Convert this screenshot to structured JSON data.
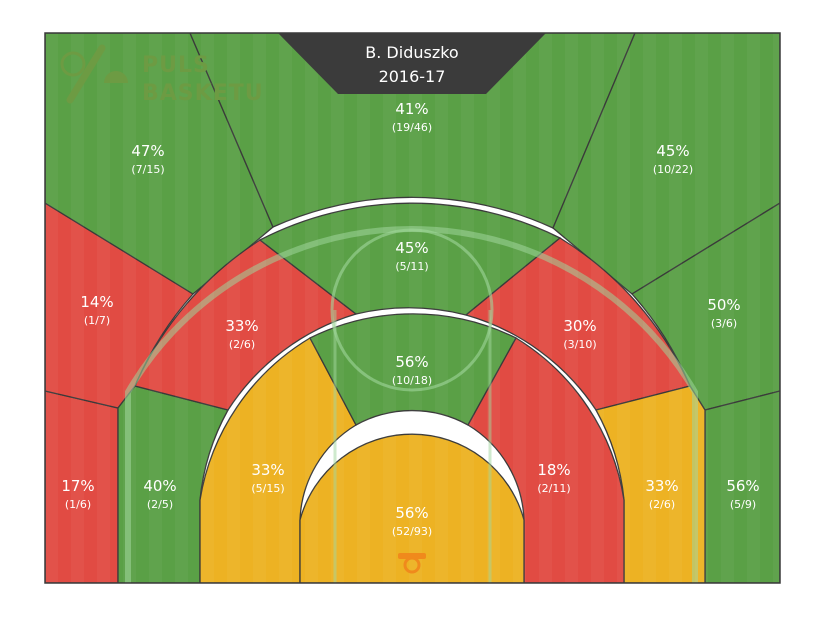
{
  "chart_data": {
    "type": "heatmap",
    "title": "B. Diduszko",
    "subtitle": "2016-17",
    "logo": [
      "PULS",
      "BASKETU"
    ],
    "colors": {
      "good": "#5aa046",
      "mid": "#edb223",
      "bad": "#e14b43",
      "lines": "#3a3a3a",
      "court_lines": "#9ed69a",
      "banner": "#3b3b3b"
    },
    "zones": [
      {
        "id": "corner3-left",
        "pct": "17%",
        "made": 1,
        "attempts": 6,
        "label": "(1/6)",
        "rating": "bad"
      },
      {
        "id": "wing3-left",
        "pct": "14%",
        "made": 1,
        "attempts": 7,
        "label": "(1/7)",
        "rating": "bad"
      },
      {
        "id": "deep-left",
        "pct": "47%",
        "made": 7,
        "attempts": 15,
        "label": "(7/15)",
        "rating": "good"
      },
      {
        "id": "deep-center",
        "pct": "41%",
        "made": 19,
        "attempts": 46,
        "label": "(19/46)",
        "rating": "good"
      },
      {
        "id": "deep-right",
        "pct": "45%",
        "made": 10,
        "attempts": 22,
        "label": "(10/22)",
        "rating": "good"
      },
      {
        "id": "wing3-right",
        "pct": "50%",
        "made": 3,
        "attempts": 6,
        "label": "(3/6)",
        "rating": "good"
      },
      {
        "id": "corner3-right",
        "pct": "56%",
        "made": 5,
        "attempts": 9,
        "label": "(5/9)",
        "rating": "good"
      },
      {
        "id": "long2-left-base",
        "pct": "40%",
        "made": 2,
        "attempts": 5,
        "label": "(2/5)",
        "rating": "good"
      },
      {
        "id": "long2-left-wing",
        "pct": "33%",
        "made": 2,
        "attempts": 6,
        "label": "(2/6)",
        "rating": "bad"
      },
      {
        "id": "long2-top",
        "pct": "45%",
        "made": 5,
        "attempts": 11,
        "label": "(5/11)",
        "rating": "good"
      },
      {
        "id": "long2-right-wing",
        "pct": "30%",
        "made": 3,
        "attempts": 10,
        "label": "(3/10)",
        "rating": "bad"
      },
      {
        "id": "long2-right-base",
        "pct": "33%",
        "made": 2,
        "attempts": 6,
        "label": "(2/6)",
        "rating": "mid"
      },
      {
        "id": "paint-left",
        "pct": "33%",
        "made": 5,
        "attempts": 15,
        "label": "(5/15)",
        "rating": "mid"
      },
      {
        "id": "paint-top",
        "pct": "56%",
        "made": 10,
        "attempts": 18,
        "label": "(10/18)",
        "rating": "good"
      },
      {
        "id": "paint-right",
        "pct": "18%",
        "made": 2,
        "attempts": 11,
        "label": "(2/11)",
        "rating": "bad"
      },
      {
        "id": "restricted",
        "pct": "56%",
        "made": 52,
        "attempts": 93,
        "label": "(52/93)",
        "rating": "mid"
      }
    ]
  }
}
